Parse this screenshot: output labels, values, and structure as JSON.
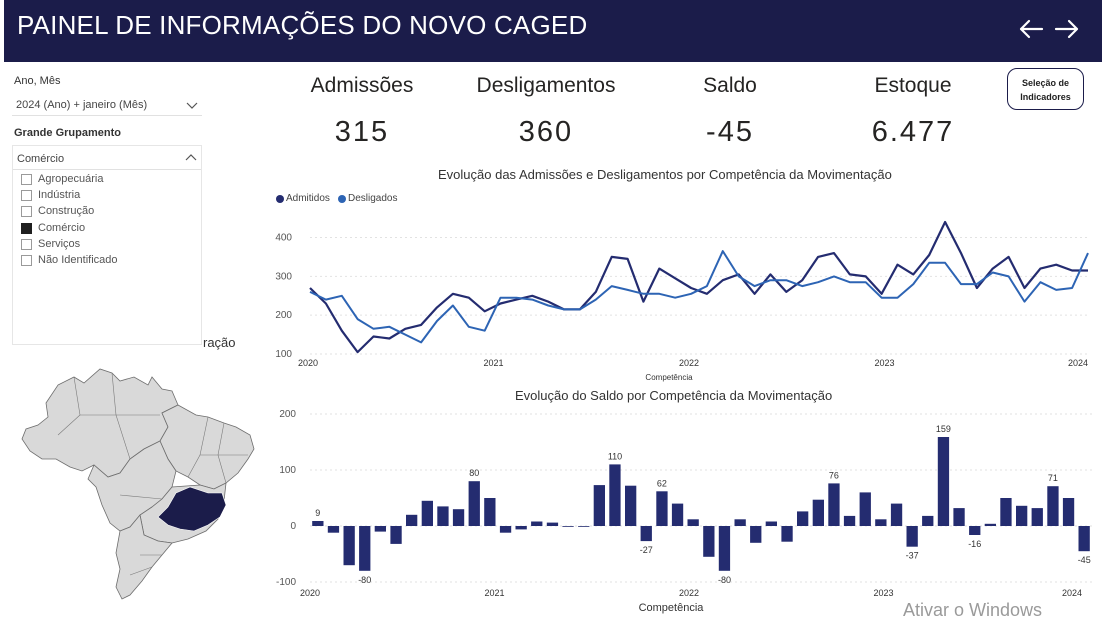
{
  "header": {
    "title": "PAINEL DE INFORMAÇÕES DO NOVO CAGED"
  },
  "filters": {
    "period_label": "Ano, Mês",
    "period_value": "2024 (Ano) + janeiro (Mês)",
    "group_label": "Grande Grupamento",
    "group_value": "Comércio",
    "group_options": [
      {
        "label": "Agropecuária",
        "checked": false
      },
      {
        "label": "Indústria",
        "checked": false
      },
      {
        "label": "Construção",
        "checked": false
      },
      {
        "label": "Comércio",
        "checked": true
      },
      {
        "label": "Serviços",
        "checked": false
      },
      {
        "label": "Não Identificado",
        "checked": false
      }
    ]
  },
  "map": {
    "title_fragment": "ração",
    "highlight_color": "#1b1c4a",
    "base_color": "#d9d9d9"
  },
  "kpis": [
    {
      "label": "Admissões",
      "value": "315"
    },
    {
      "label": "Desligamentos",
      "value": "360"
    },
    {
      "label": "Saldo",
      "value": "-45"
    },
    {
      "label": "Estoque",
      "value": "6.477"
    }
  ],
  "selection_button": {
    "line1": "Seleção de",
    "line2": "Indicadores"
  },
  "chart_data": [
    {
      "type": "line",
      "title": "Evolução das Admissões e Desligamentos por Competência da Movimentação",
      "xlabel": "Competência",
      "ylabel": "",
      "x_ticks": [
        "2020",
        "2021",
        "2022",
        "2023",
        "2024"
      ],
      "y_ticks": [
        100,
        200,
        300,
        400
      ],
      "ylim": [
        100,
        440
      ],
      "legend_position": "top-left",
      "series": [
        {
          "name": "Admitidos",
          "color": "#242c70",
          "values": [
            270,
            230,
            160,
            105,
            145,
            140,
            165,
            175,
            220,
            255,
            245,
            210,
            230,
            240,
            250,
            235,
            215,
            215,
            260,
            350,
            345,
            235,
            320,
            295,
            270,
            255,
            290,
            305,
            255,
            305,
            260,
            290,
            350,
            360,
            305,
            300,
            255,
            330,
            305,
            355,
            440,
            360,
            270,
            320,
            350,
            270,
            320,
            330,
            315,
            315
          ]
        },
        {
          "name": "Desligados",
          "color": "#2d64b4",
          "values": [
            260,
            240,
            250,
            190,
            165,
            170,
            150,
            130,
            185,
            225,
            170,
            160,
            245,
            245,
            240,
            225,
            215,
            215,
            240,
            275,
            265,
            255,
            255,
            245,
            255,
            275,
            365,
            300,
            275,
            290,
            290,
            275,
            285,
            300,
            285,
            285,
            245,
            245,
            280,
            335,
            335,
            280,
            280,
            310,
            300,
            235,
            285,
            265,
            270,
            360
          ]
        }
      ]
    },
    {
      "type": "bar",
      "title": "Evolução do Saldo por Competência da Movimentação",
      "xlabel": "Competência",
      "ylabel": "",
      "x_ticks": [
        "2020",
        "2021",
        "2022",
        "2023",
        "2024"
      ],
      "y_ticks": [
        -100,
        0,
        100,
        200
      ],
      "ylim": [
        -100,
        200
      ],
      "color": "#242c70",
      "values": [
        9,
        -12,
        -70,
        -80,
        -10,
        -32,
        20,
        45,
        35,
        30,
        80,
        50,
        -12,
        -6,
        8,
        6,
        0,
        0,
        73,
        110,
        72,
        -27,
        62,
        40,
        12,
        -55,
        -80,
        12,
        -30,
        8,
        -28,
        26,
        47,
        76,
        18,
        60,
        12,
        40,
        -37,
        18,
        159,
        32,
        -16,
        4,
        50,
        36,
        32,
        71,
        50,
        -45
      ],
      "data_labels": [
        {
          "index": 0,
          "text": "9"
        },
        {
          "index": 3,
          "text": "-80"
        },
        {
          "index": 10,
          "text": "80"
        },
        {
          "index": 19,
          "text": "110"
        },
        {
          "index": 21,
          "text": "-27"
        },
        {
          "index": 22,
          "text": "62"
        },
        {
          "index": 26,
          "text": "-80"
        },
        {
          "index": 33,
          "text": "76"
        },
        {
          "index": 38,
          "text": "-37"
        },
        {
          "index": 40,
          "text": "159"
        },
        {
          "index": 42,
          "text": "-16"
        },
        {
          "index": 47,
          "text": "71"
        },
        {
          "index": 49,
          "text": "-45"
        }
      ]
    }
  ],
  "watermark": "Ativar o Windows"
}
